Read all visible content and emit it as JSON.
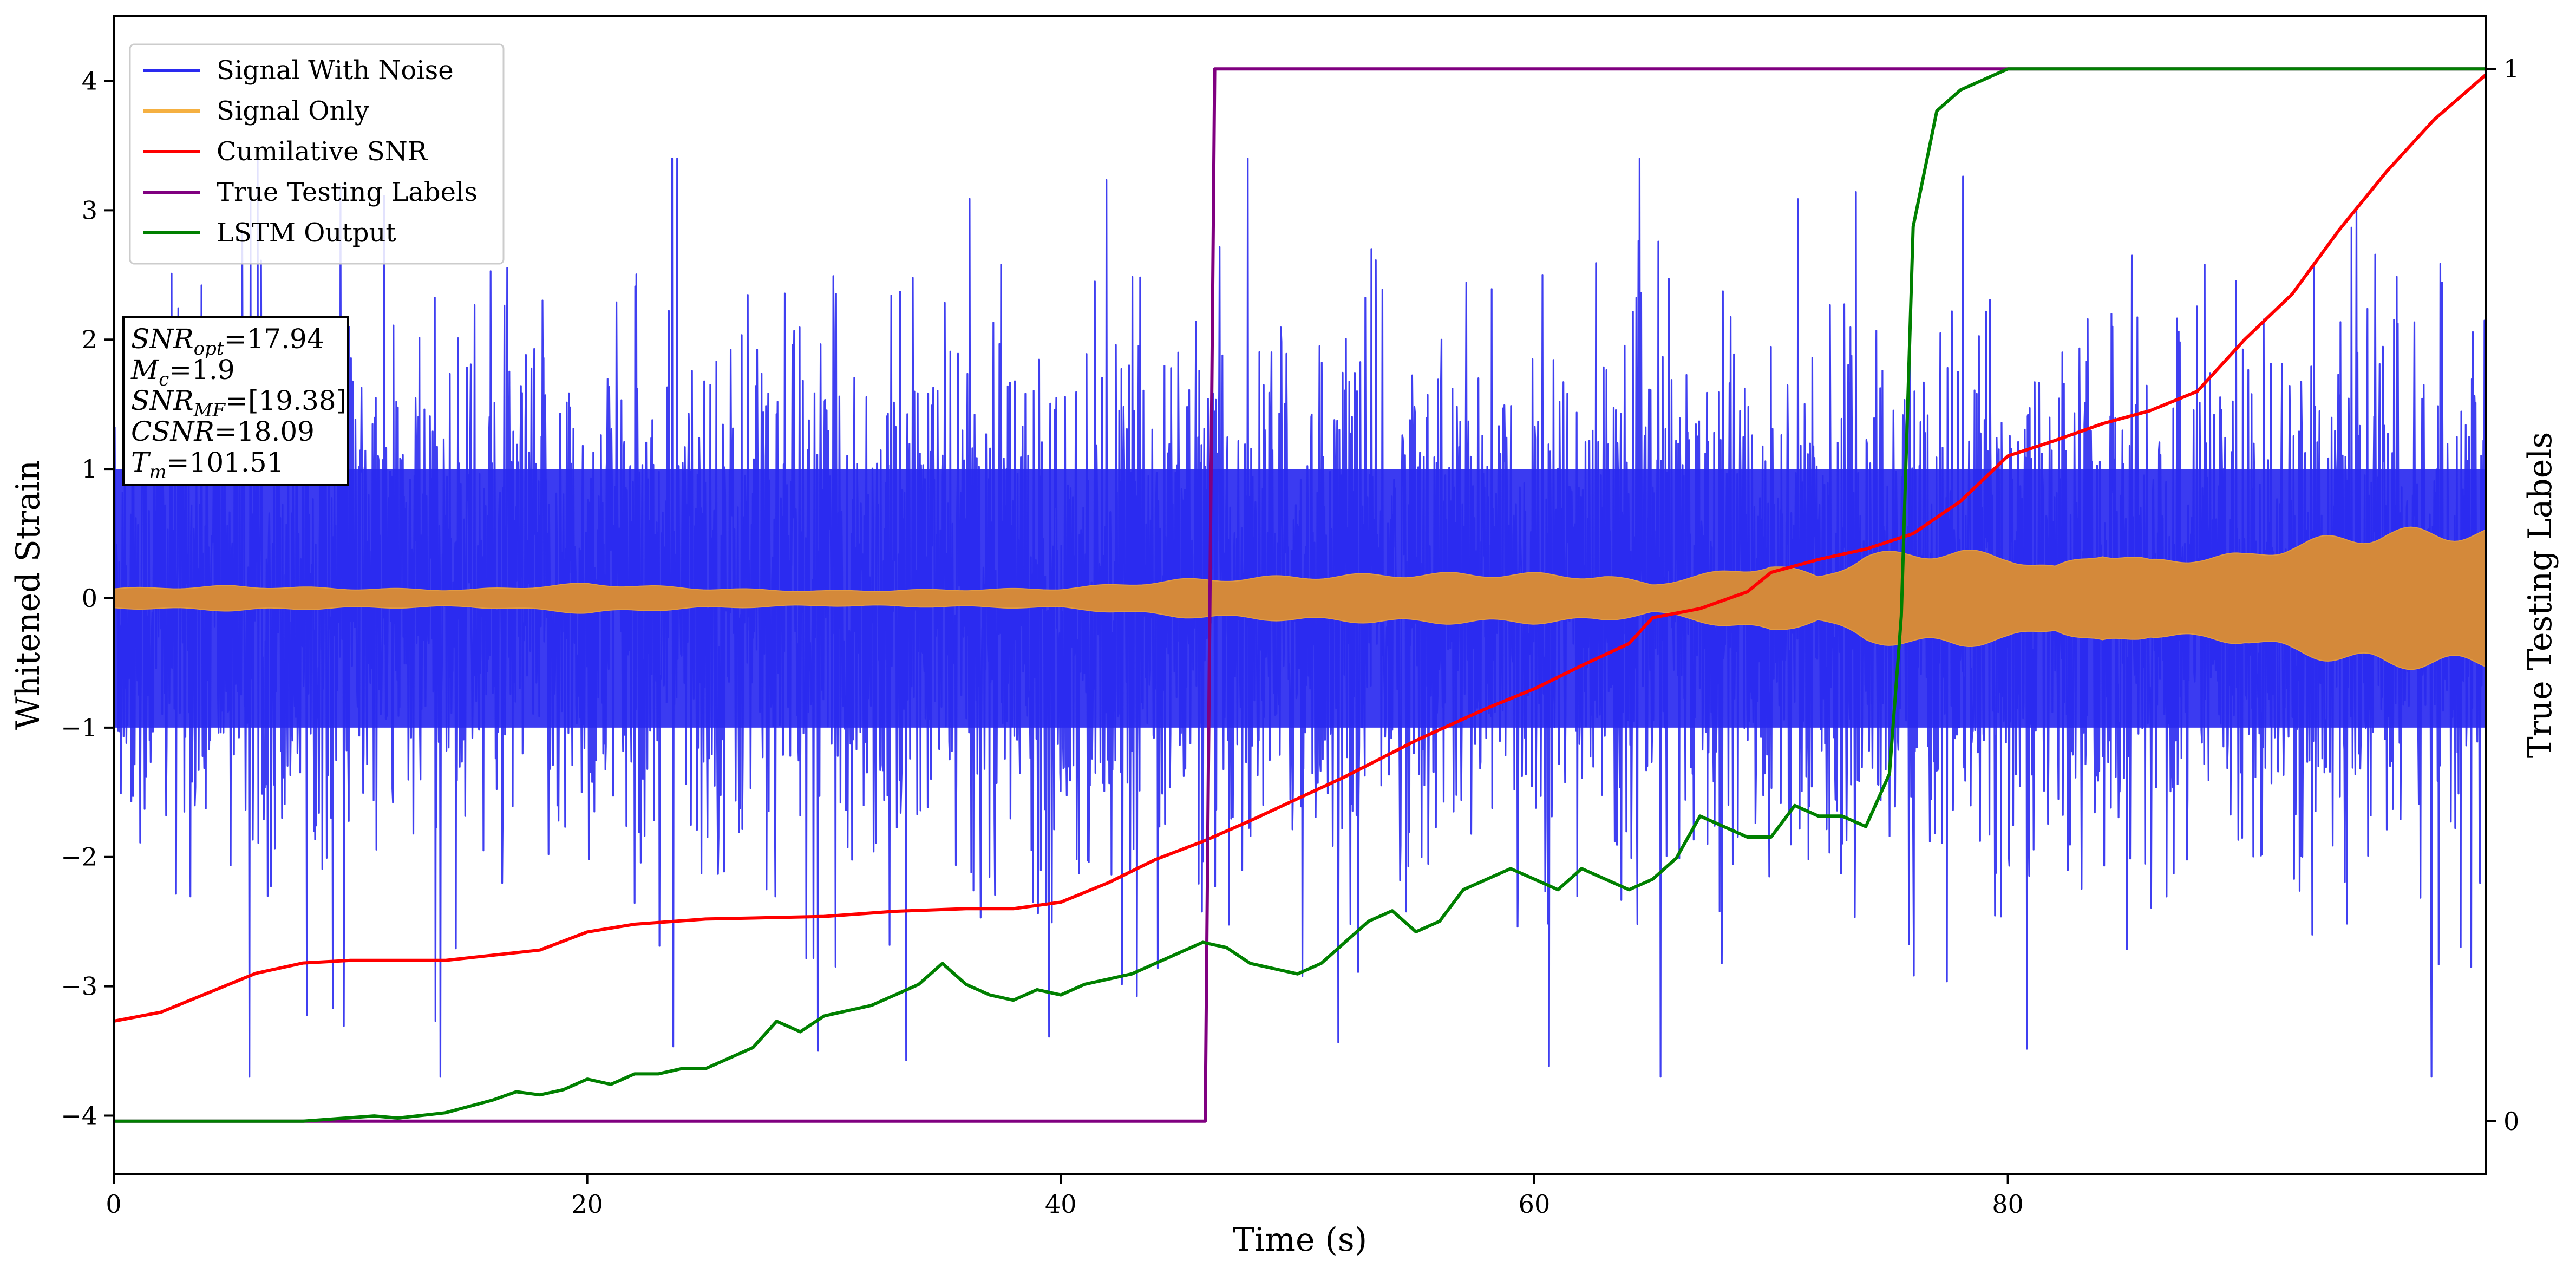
{
  "chart_data": {
    "type": "line",
    "xlabel": "Time (s)",
    "ylabel": "Whitened Strain",
    "y2label": "True Testing Labels",
    "xlim": [
      0,
      100.2
    ],
    "ylim": [
      -4.45,
      4.5
    ],
    "y2lim": [
      -0.05,
      1.05
    ],
    "xticks": [
      0,
      20,
      40,
      60,
      80
    ],
    "yticks": [
      -4,
      -3,
      -2,
      -1,
      0,
      1,
      2,
      3,
      4
    ],
    "y2ticks": [
      0,
      1
    ],
    "grid": false,
    "legend_position": "top-left",
    "legend": [
      {
        "label": "Signal With Noise",
        "color": "#2a2af0"
      },
      {
        "label": "Signal Only",
        "color": "#f5b041"
      },
      {
        "label": "Cumilative SNR",
        "color": "#ff0000"
      },
      {
        "label": "True Testing Labels",
        "color": "#800080"
      },
      {
        "label": "LSTM Output",
        "color": "#008000"
      }
    ],
    "info_box": [
      {
        "sym": "SNR",
        "sub": "opt",
        "rest": "=17.94"
      },
      {
        "sym": "M",
        "sub": "c",
        "rest": "=1.9"
      },
      {
        "sym": "SNR",
        "sub": "MF",
        "rest": "=[19.38]"
      },
      {
        "sym": "CSNR",
        "sub": "",
        "rest": "=18.09"
      },
      {
        "sym": "T",
        "sub": "m",
        "rest": "=101.51"
      }
    ],
    "series": [
      {
        "name": "Signal With Noise",
        "color": "#2a2af0",
        "kind": "noise",
        "core_amplitude": 1.0,
        "peak_range": [
          -3.7,
          3.4
        ]
      },
      {
        "name": "Signal Only",
        "color": "#f5b041",
        "envelope": {
          "x": [
            0,
            5,
            10,
            15,
            20,
            25,
            30,
            35,
            40,
            45,
            50,
            55,
            60,
            63,
            65,
            68,
            70,
            72,
            74,
            76,
            78,
            80,
            82,
            84,
            86,
            88,
            90,
            92,
            94,
            96,
            98,
            100.2
          ],
          "y": [
            0.08,
            0.1,
            0.08,
            0.07,
            0.12,
            0.08,
            0.06,
            0.07,
            0.08,
            0.15,
            0.18,
            0.2,
            0.2,
            0.18,
            0.12,
            0.22,
            0.28,
            0.18,
            0.35,
            0.38,
            0.38,
            0.35,
            0.25,
            0.4,
            0.3,
            0.35,
            0.35,
            0.45,
            0.5,
            0.55,
            0.55,
            0.55
          ]
        }
      },
      {
        "name": "Cumilative SNR",
        "color": "#ff0000",
        "x": [
          0,
          2,
          4,
          6,
          8,
          10,
          14,
          18,
          20,
          22,
          25,
          30,
          33,
          36,
          38,
          40,
          42,
          44,
          46,
          48,
          50,
          52,
          55,
          58,
          60,
          62,
          64,
          65,
          67,
          69,
          70,
          72,
          74,
          76,
          78,
          80,
          82,
          84,
          86,
          88,
          90,
          92,
          94,
          96,
          98,
          100.2
        ],
        "y": [
          -3.27,
          -3.2,
          -3.05,
          -2.9,
          -2.82,
          -2.8,
          -2.8,
          -2.72,
          -2.58,
          -2.52,
          -2.48,
          -2.46,
          -2.42,
          -2.4,
          -2.4,
          -2.35,
          -2.2,
          -2.02,
          -1.88,
          -1.72,
          -1.55,
          -1.38,
          -1.1,
          -0.85,
          -0.7,
          -0.52,
          -0.35,
          -0.15,
          -0.08,
          0.05,
          0.2,
          0.3,
          0.38,
          0.5,
          0.75,
          1.1,
          1.22,
          1.35,
          1.45,
          1.6,
          2.0,
          2.35,
          2.85,
          3.3,
          3.7,
          4.05
        ]
      },
      {
        "name": "True Testing Labels",
        "color": "#800080",
        "axis": "right",
        "x": [
          0,
          46.1,
          46.5,
          100.2
        ],
        "y": [
          0,
          0,
          1,
          1
        ]
      },
      {
        "name": "LSTM Output",
        "color": "#008000",
        "axis": "right",
        "x": [
          0,
          8,
          11,
          12,
          14,
          16,
          17,
          18,
          19,
          20,
          21,
          22,
          23,
          24,
          25,
          26,
          27,
          28,
          29,
          30,
          31,
          32,
          33,
          34,
          35,
          36,
          37,
          38,
          39,
          40,
          41,
          42,
          43,
          44,
          45,
          46,
          47,
          48,
          49,
          50,
          51,
          52,
          53,
          54,
          55,
          56,
          57,
          58,
          59,
          60,
          61,
          62,
          63,
          64,
          65,
          66,
          67,
          68,
          69,
          70,
          71,
          72,
          73,
          74,
          75,
          75.5,
          76,
          77,
          78,
          79,
          80,
          82,
          86,
          100.2
        ],
        "y": [
          0,
          0,
          0.005,
          0.003,
          0.008,
          0.02,
          0.028,
          0.025,
          0.03,
          0.04,
          0.035,
          0.045,
          0.045,
          0.05,
          0.05,
          0.06,
          0.07,
          0.095,
          0.085,
          0.1,
          0.105,
          0.11,
          0.12,
          0.13,
          0.15,
          0.13,
          0.12,
          0.115,
          0.125,
          0.12,
          0.13,
          0.135,
          0.14,
          0.15,
          0.16,
          0.17,
          0.165,
          0.15,
          0.145,
          0.14,
          0.15,
          0.17,
          0.19,
          0.2,
          0.18,
          0.19,
          0.22,
          0.23,
          0.24,
          0.23,
          0.22,
          0.24,
          0.23,
          0.22,
          0.23,
          0.25,
          0.29,
          0.28,
          0.27,
          0.27,
          0.3,
          0.29,
          0.29,
          0.28,
          0.33,
          0.48,
          0.85,
          0.96,
          0.98,
          0.99,
          1.0,
          1.0,
          1.0,
          1.0
        ]
      }
    ]
  }
}
